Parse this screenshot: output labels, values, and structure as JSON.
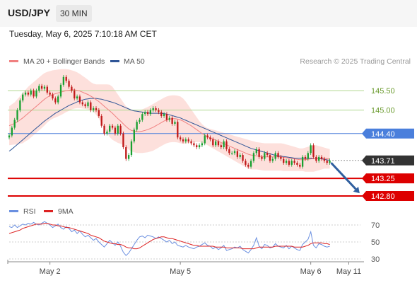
{
  "header": {
    "symbol": "USD/JPY",
    "timeframe": "30 MIN",
    "datetime": "Tuesday, May 6, 2025 7:10:18 AM CET"
  },
  "credit": "Research © 2025 Trading Central",
  "colors": {
    "candle_up": "#18a030",
    "candle_down": "#c01818",
    "ma20": "#f08080",
    "bollinger_fill": "#fde0dc",
    "ma50": "#2f5597",
    "target_line": "#b0d890",
    "pivot_line": "#4a7fdc",
    "support_line": "#dd0000",
    "current_label": "#333333",
    "rsi": "#6a8fe0",
    "rsi_ma": "#dd2222",
    "arrow": "#2f5f9f"
  },
  "chart_data": [
    {
      "type": "candlestick",
      "legend": [
        {
          "name": "MA 20 + Bollinger Bands",
          "color": "#f08080"
        },
        {
          "name": "MA 50",
          "color": "#2f5597"
        }
      ],
      "x_ticks": [
        "May 2",
        "May 5",
        "May 6",
        "May 11"
      ],
      "x_tick_index": [
        15,
        63,
        111,
        125
      ],
      "x_range": [
        0,
        128
      ],
      "ylim": [
        142.6,
        146.3
      ],
      "price_levels": [
        {
          "value": 145.5,
          "label": "145.50",
          "kind": "target"
        },
        {
          "value": 145.0,
          "label": "145.00",
          "kind": "target"
        },
        {
          "value": 144.4,
          "label": "144.40",
          "kind": "pivot"
        },
        {
          "value": 143.71,
          "label": "143.71",
          "kind": "current"
        },
        {
          "value": 143.25,
          "label": "143.25",
          "kind": "support"
        },
        {
          "value": 142.8,
          "label": "142.80",
          "kind": "support"
        }
      ],
      "forecast_arrow": {
        "from_index": 118.5,
        "from": 143.65,
        "to_index": 129,
        "to": 142.87
      },
      "close": [
        144.35,
        144.55,
        144.75,
        145.0,
        145.25,
        145.4,
        145.45,
        145.4,
        145.5,
        145.35,
        145.5,
        145.62,
        145.55,
        145.6,
        145.45,
        145.4,
        145.3,
        145.2,
        145.35,
        145.65,
        145.85,
        145.75,
        145.6,
        145.5,
        145.3,
        145.35,
        145.2,
        145.15,
        145.1,
        145.2,
        145.0,
        145.05,
        145.0,
        144.85,
        144.6,
        144.4,
        144.45,
        144.6,
        144.55,
        144.4,
        144.6,
        144.4,
        144.05,
        143.75,
        143.85,
        144.2,
        144.5,
        144.7,
        144.75,
        144.9,
        144.95,
        144.9,
        145.0,
        145.05,
        145.0,
        144.95,
        144.85,
        144.9,
        144.75,
        144.8,
        144.65,
        144.7,
        144.3,
        144.25,
        144.2,
        144.25,
        144.2,
        144.15,
        144.1,
        144.05,
        144.1,
        144.15,
        144.35,
        144.3,
        144.25,
        144.1,
        144.2,
        144.1,
        144.05,
        144.2,
        144.0,
        143.9,
        143.9,
        143.95,
        143.8,
        143.85,
        143.7,
        143.6,
        143.55,
        143.7,
        143.9,
        144.0,
        143.8,
        143.75,
        143.9,
        143.85,
        143.7,
        143.75,
        143.9,
        143.8,
        143.75,
        143.65,
        143.7,
        143.6,
        143.7,
        143.65,
        143.6,
        143.55,
        143.8,
        143.75,
        143.9,
        144.1,
        143.8,
        143.7,
        143.8,
        143.75,
        143.7,
        143.65,
        143.71
      ],
      "ma20": [
        144.6,
        144.63,
        144.66,
        144.7,
        144.75,
        144.8,
        144.86,
        144.92,
        144.98,
        145.04,
        145.1,
        145.16,
        145.22,
        145.28,
        145.33,
        145.37,
        145.4,
        145.42,
        145.44,
        145.46,
        145.48,
        145.5,
        145.51,
        145.52,
        145.52,
        145.51,
        145.49,
        145.46,
        145.43,
        145.4,
        145.36,
        145.32,
        145.27,
        145.22,
        145.16,
        145.1,
        145.04,
        144.98,
        144.92,
        144.85,
        144.78,
        144.72,
        144.65,
        144.58,
        144.52,
        144.48,
        144.46,
        144.45,
        144.45,
        144.46,
        144.48,
        144.5,
        144.53,
        144.56,
        144.6,
        144.64,
        144.68,
        144.72,
        144.75,
        144.77,
        144.78,
        144.78,
        144.77,
        144.75,
        144.72,
        144.68,
        144.64,
        144.6,
        144.55,
        144.5,
        144.45,
        144.4,
        144.36,
        144.32,
        144.29,
        144.26,
        144.23,
        144.2,
        144.17,
        144.14,
        144.11,
        144.08,
        144.05,
        144.02,
        143.99,
        143.96,
        143.93,
        143.9,
        143.87,
        143.85,
        143.84,
        143.83,
        143.82,
        143.81,
        143.8,
        143.8,
        143.8,
        143.8,
        143.8,
        143.8,
        143.8,
        143.79,
        143.78,
        143.77,
        143.76,
        143.75,
        143.74,
        143.73,
        143.73,
        143.73,
        143.74,
        143.75,
        143.76,
        143.77,
        143.77,
        143.77,
        143.77,
        143.76,
        143.75
      ],
      "bb_upper": [
        145.1,
        145.15,
        145.2,
        145.28,
        145.36,
        145.45,
        145.52,
        145.6,
        145.66,
        145.72,
        145.78,
        145.84,
        145.9,
        145.95,
        145.98,
        146.0,
        146.02,
        146.03,
        146.04,
        146.05,
        146.05,
        146.05,
        146.04,
        146.02,
        146.0,
        145.97,
        145.93,
        145.88,
        145.83,
        145.78,
        145.72,
        145.68,
        145.66,
        145.66,
        145.66,
        145.66,
        145.66,
        145.65,
        145.6,
        145.5,
        145.4,
        145.3,
        145.2,
        145.1,
        145.05,
        145.02,
        145.0,
        145.0,
        145.0,
        145.02,
        145.05,
        145.08,
        145.12,
        145.16,
        145.2,
        145.24,
        145.28,
        145.32,
        145.35,
        145.37,
        145.38,
        145.38,
        145.37,
        145.35,
        145.3,
        145.22,
        145.12,
        145.02,
        144.92,
        144.82,
        144.72,
        144.64,
        144.58,
        144.54,
        144.52,
        144.5,
        144.48,
        144.46,
        144.44,
        144.42,
        144.4,
        144.38,
        144.36,
        144.34,
        144.32,
        144.3,
        144.28,
        144.26,
        144.24,
        144.22,
        144.2,
        144.18,
        144.17,
        144.16,
        144.15,
        144.15,
        144.15,
        144.15,
        144.15,
        144.15,
        144.15,
        144.14,
        144.12,
        144.1,
        144.08,
        144.06,
        144.04,
        144.02,
        144.02,
        144.04,
        144.06,
        144.08,
        144.1,
        144.1,
        144.08,
        144.06,
        144.04,
        144.02,
        144.0
      ],
      "bb_lower": [
        144.1,
        144.11,
        144.12,
        144.12,
        144.14,
        144.15,
        144.2,
        144.24,
        144.3,
        144.36,
        144.42,
        144.48,
        144.54,
        144.61,
        144.68,
        144.74,
        144.78,
        144.81,
        144.84,
        144.87,
        144.91,
        144.95,
        144.98,
        145.02,
        145.04,
        145.05,
        145.05,
        145.04,
        145.03,
        145.02,
        145.0,
        144.96,
        144.88,
        144.78,
        144.66,
        144.54,
        144.42,
        144.31,
        144.24,
        144.2,
        144.16,
        144.14,
        144.1,
        144.06,
        143.99,
        143.94,
        143.92,
        143.9,
        143.9,
        143.9,
        143.91,
        143.92,
        143.94,
        143.96,
        144.0,
        144.04,
        144.08,
        144.12,
        144.15,
        144.17,
        144.18,
        144.18,
        144.17,
        144.15,
        144.14,
        144.14,
        144.16,
        144.18,
        144.18,
        144.18,
        144.18,
        144.16,
        144.14,
        144.1,
        144.06,
        144.02,
        143.98,
        143.94,
        143.9,
        143.86,
        143.82,
        143.78,
        143.74,
        143.7,
        143.66,
        143.62,
        143.58,
        143.54,
        143.5,
        143.48,
        143.48,
        143.48,
        143.47,
        143.46,
        143.45,
        143.45,
        143.45,
        143.45,
        143.45,
        143.45,
        143.45,
        143.44,
        143.44,
        143.44,
        143.44,
        143.44,
        143.44,
        143.44,
        143.44,
        143.42,
        143.42,
        143.42,
        143.42,
        143.44,
        143.46,
        143.48,
        143.5,
        143.5,
        143.5
      ],
      "ma50": [
        143.95,
        144.0,
        144.06,
        144.12,
        144.18,
        144.24,
        144.3,
        144.36,
        144.42,
        144.48,
        144.54,
        144.6,
        144.66,
        144.72,
        144.77,
        144.82,
        144.87,
        144.92,
        144.96,
        145.0,
        145.04,
        145.08,
        145.12,
        145.15,
        145.18,
        145.21,
        145.24,
        145.26,
        145.28,
        145.29,
        145.3,
        145.3,
        145.3,
        145.29,
        145.28,
        145.26,
        145.24,
        145.22,
        145.2,
        145.18,
        145.15,
        145.12,
        145.09,
        145.06,
        145.03,
        145.0,
        144.98,
        144.97,
        144.96,
        144.95,
        144.94,
        144.93,
        144.92,
        144.92,
        144.92,
        144.92,
        144.92,
        144.91,
        144.9,
        144.88,
        144.86,
        144.84,
        144.82,
        144.8,
        144.77,
        144.74,
        144.71,
        144.68,
        144.65,
        144.62,
        144.59,
        144.56,
        144.53,
        144.5,
        144.47,
        144.44,
        144.41,
        144.38,
        144.35,
        144.32,
        144.29,
        144.26,
        144.23,
        144.2,
        144.17,
        144.14,
        144.11,
        144.08,
        144.05,
        144.02,
        144.0,
        143.98,
        143.96,
        143.94,
        143.92,
        143.9,
        143.88,
        143.86,
        143.84,
        143.83,
        143.82,
        143.81,
        143.8,
        143.79,
        143.78,
        143.77,
        143.77,
        143.77,
        143.77,
        143.77,
        143.77,
        143.77,
        143.77,
        143.77,
        143.76,
        143.75,
        143.74,
        143.72,
        143.72
      ]
    },
    {
      "type": "line",
      "legend": [
        {
          "name": "RSI",
          "color": "#6a8fe0"
        },
        {
          "name": "9MA",
          "color": "#dd2222"
        }
      ],
      "y_ticks": [
        30,
        50,
        70
      ],
      "ylim": [
        25,
        80
      ],
      "series": [
        {
          "name": "RSI",
          "values": [
            68,
            67,
            70,
            67,
            69,
            71,
            70,
            72,
            71,
            73,
            71,
            70,
            72,
            74,
            72,
            70,
            67,
            69,
            71,
            67,
            65,
            68,
            66,
            62,
            64,
            60,
            63,
            59,
            56,
            58,
            55,
            52,
            54,
            50,
            47,
            44,
            48,
            52,
            49,
            46,
            50,
            45,
            38,
            34,
            37,
            42,
            47,
            52,
            56,
            57,
            55,
            58,
            57,
            56,
            54,
            56,
            54,
            52,
            50,
            52,
            48,
            50,
            46,
            45,
            44,
            46,
            44,
            43,
            42,
            44,
            45,
            47,
            49,
            46,
            45,
            42,
            44,
            41,
            43,
            46,
            40,
            41,
            42,
            44,
            43,
            45,
            41,
            39,
            37,
            41,
            46,
            55,
            45,
            42,
            47,
            46,
            43,
            44,
            48,
            45,
            44,
            43,
            46,
            42,
            45,
            43,
            41,
            40,
            47,
            50,
            53,
            62,
            46,
            43,
            48,
            47,
            45,
            44,
            45
          ]
        },
        {
          "name": "9MA",
          "values": [
            60,
            61,
            62,
            63,
            64,
            66,
            67,
            68,
            69,
            70,
            71,
            71,
            71,
            72,
            72,
            71,
            70,
            70,
            69,
            69,
            68,
            67,
            67,
            66,
            65,
            64,
            63,
            62,
            61,
            60,
            58,
            57,
            56,
            55,
            53,
            51,
            50,
            49,
            48,
            48,
            47,
            47,
            46,
            44,
            43,
            43,
            42,
            42,
            43,
            45,
            47,
            49,
            51,
            53,
            54,
            55,
            56,
            56,
            55,
            54,
            54,
            53,
            52,
            51,
            50,
            49,
            48,
            47,
            46,
            46,
            45,
            45,
            45,
            45,
            45,
            45,
            44,
            44,
            44,
            44,
            43,
            43,
            43,
            43,
            43,
            43,
            42,
            42,
            42,
            42,
            42,
            43,
            44,
            44,
            44,
            44,
            44,
            44,
            45,
            45,
            45,
            45,
            45,
            45,
            45,
            44,
            44,
            44,
            44,
            45,
            46,
            48,
            49,
            49,
            49,
            49,
            48,
            48,
            47
          ]
        }
      ]
    }
  ]
}
